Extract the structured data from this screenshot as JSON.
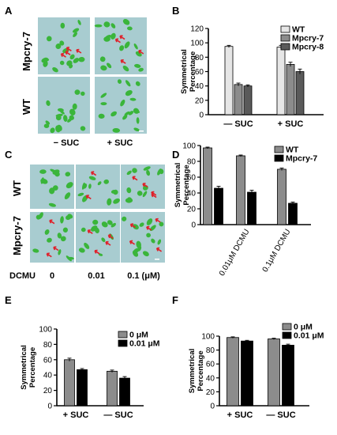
{
  "panel_labels": [
    "A",
    "B",
    "C",
    "D",
    "E",
    "F"
  ],
  "colors": {
    "light_gray": "#e6e6e6",
    "mid_gray": "#8c8c8c",
    "dark_gray": "#5a5a5a",
    "black": "#000000",
    "plate": "#a8ccd0",
    "seedling": "#3ab53a",
    "arrow": "#e0202a"
  },
  "photo_a": {
    "row_labels": [
      "Mpcry-7",
      "WT"
    ],
    "col_labels": [
      "− SUC",
      "+ SUC"
    ]
  },
  "photo_c": {
    "row_labels": [
      "WT",
      "Mpcry-7"
    ],
    "col_labels": [
      "0",
      "0.01",
      "0.1 (μM)"
    ],
    "row_prefix": "DCMU"
  },
  "chart_data": [
    {
      "id": "B",
      "type": "bar",
      "ylabel": "Symmetrical\nPercentage",
      "ylim": [
        0,
        120
      ],
      "yticks": [
        0,
        20,
        40,
        60,
        80,
        100,
        120
      ],
      "categories": [
        "— SUC",
        "+ SUC"
      ],
      "legend_position": "top-right",
      "series": [
        {
          "name": "WT",
          "color": "#e6e6e6",
          "values": [
            95,
            94
          ],
          "errors": [
            1.5,
            2.5
          ]
        },
        {
          "name": "Mpcry-7",
          "color": "#8c8c8c",
          "values": [
            42,
            70
          ],
          "errors": [
            2,
            3
          ]
        },
        {
          "name": "Mpcry-8",
          "color": "#5a5a5a",
          "values": [
            40,
            60
          ],
          "errors": [
            1.5,
            3.5
          ]
        }
      ]
    },
    {
      "id": "D",
      "type": "bar",
      "ylabel": "Symmetrical\nPercentage",
      "ylim": [
        0,
        100
      ],
      "yticks": [
        0,
        20,
        40,
        60,
        80,
        100
      ],
      "categories": [
        "",
        "0.01μM DCMU",
        "0.1μM DCMU"
      ],
      "legend_position": "top-right",
      "series": [
        {
          "name": "WT",
          "color": "#8c8c8c",
          "values": [
            97,
            87,
            70
          ],
          "errors": [
            1,
            1,
            1.5
          ]
        },
        {
          "name": "Mpcry-7",
          "color": "#000000",
          "values": [
            46,
            41,
            27
          ],
          "errors": [
            2.5,
            2.5,
            1.5
          ]
        }
      ]
    },
    {
      "id": "E",
      "type": "bar",
      "ylabel": "Symmetrical\nPercentage",
      "ylim": [
        0,
        100
      ],
      "yticks": [
        0,
        20,
        40,
        60,
        80,
        100
      ],
      "categories": [
        "+ SUC",
        "— SUC"
      ],
      "legend_position": "top-right",
      "series": [
        {
          "name": "0 μM",
          "color": "#8c8c8c",
          "values": [
            60,
            45
          ],
          "errors": [
            2,
            1.5
          ]
        },
        {
          "name": "0.01 μM",
          "color": "#000000",
          "values": [
            47,
            36
          ],
          "errors": [
            1.5,
            2
          ]
        }
      ]
    },
    {
      "id": "F",
      "type": "bar",
      "ylabel": "Symmetrical\nPercentage",
      "ylim": [
        0,
        100
      ],
      "yticks": [
        0,
        20,
        40,
        60,
        80,
        100
      ],
      "categories": [
        "+ SUC",
        "— SUC"
      ],
      "legend_position": "top-right",
      "series": [
        {
          "name": "0 μM",
          "color": "#8c8c8c",
          "values": [
            98,
            96
          ],
          "errors": [
            1,
            1
          ]
        },
        {
          "name": "0.01 μM",
          "color": "#000000",
          "values": [
            93,
            87
          ],
          "errors": [
            1,
            1.5
          ]
        }
      ]
    }
  ]
}
